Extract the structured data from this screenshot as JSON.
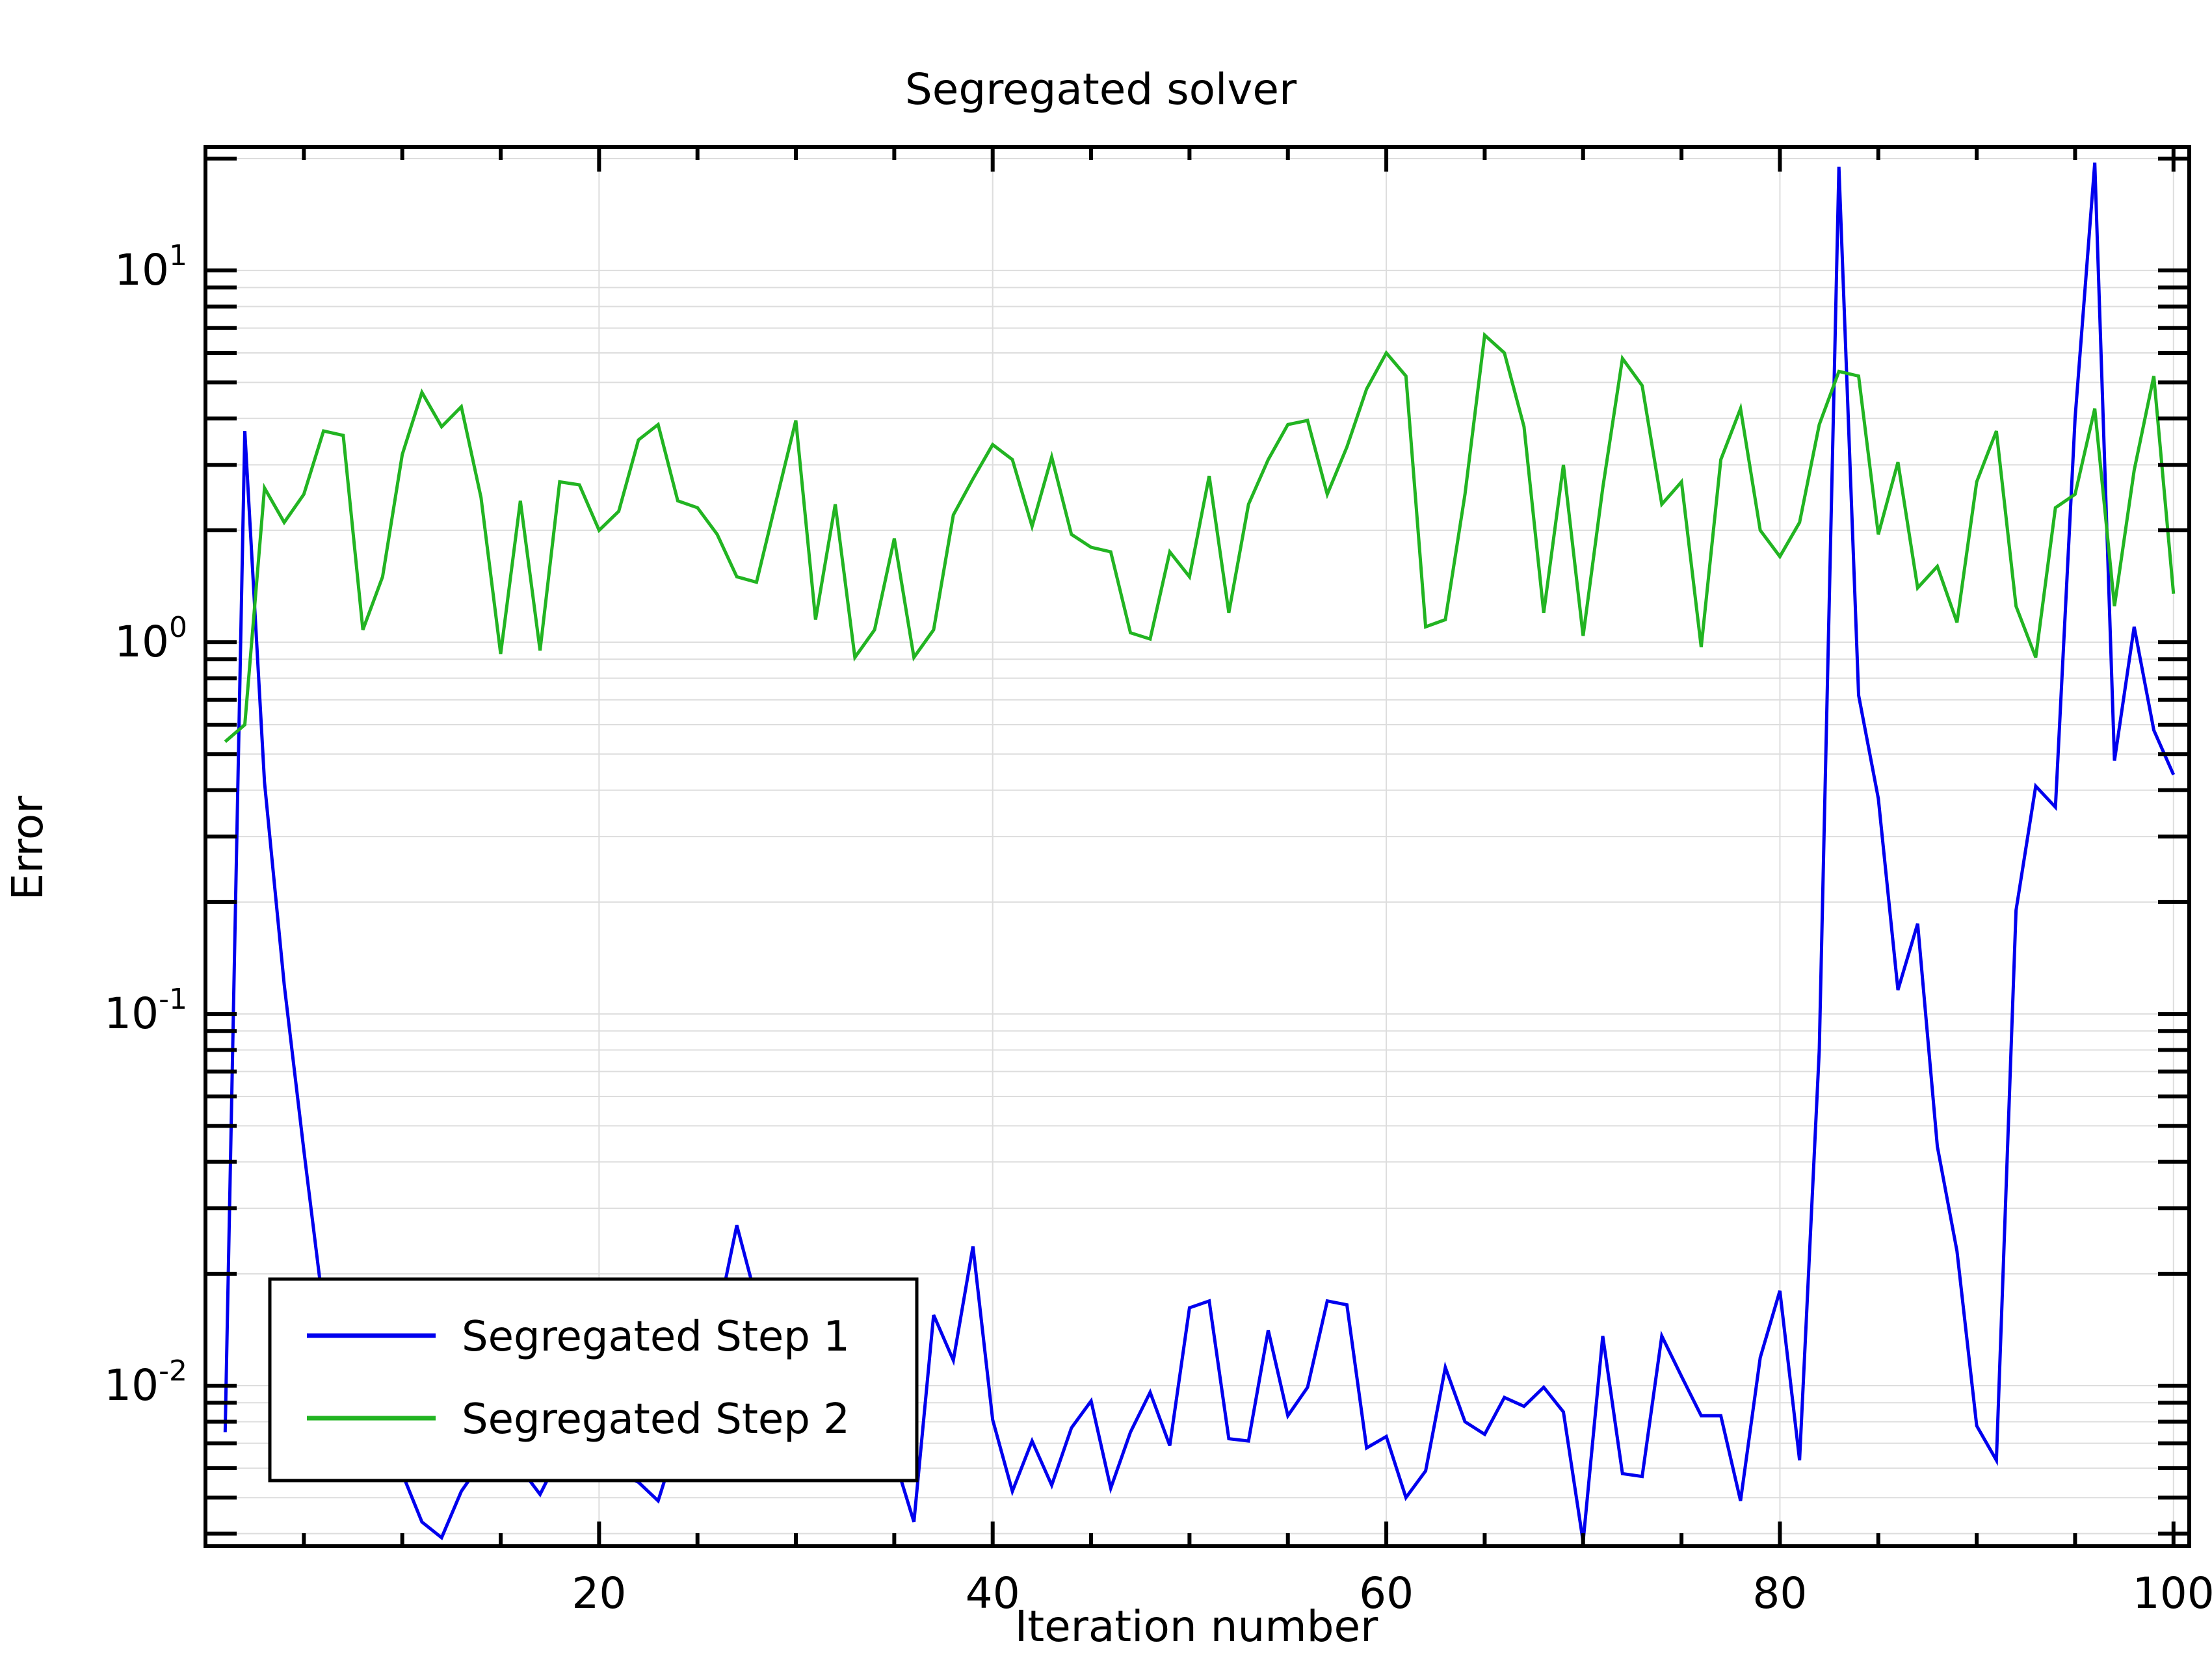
{
  "chart_data": {
    "type": "line",
    "title": "Segregated solver",
    "xlabel": "Iteration number",
    "ylabel": "Error",
    "xlim": [
      0,
      100.8
    ],
    "ylim": [
      0.0037,
      21.5
    ],
    "yscale": "log",
    "grid": true,
    "legend_position": "bottom-left",
    "x_ticks": [
      20,
      40,
      60,
      80,
      100
    ],
    "x_tick_labels": [
      "20",
      "40",
      "60",
      "80",
      "100"
    ],
    "y_ticks": [
      0.01,
      0.1,
      1,
      10
    ],
    "y_tick_labels": [
      {
        "base": "10",
        "exp": "-2"
      },
      {
        "base": "10",
        "exp": "-1"
      },
      {
        "base": "10",
        "exp": "0"
      },
      {
        "base": "10",
        "exp": "1"
      }
    ],
    "series": [
      {
        "name": "Segregated Step 1",
        "color": "#0000ee",
        "x": [
          1,
          2,
          3,
          4,
          5,
          6,
          7,
          8,
          9,
          10,
          11,
          12,
          13,
          14,
          15,
          16,
          17,
          18,
          19,
          20,
          21,
          22,
          23,
          24,
          25,
          26,
          27,
          28,
          29,
          30,
          31,
          32,
          33,
          34,
          35,
          36,
          37,
          38,
          39,
          40,
          41,
          42,
          43,
          44,
          45,
          46,
          47,
          48,
          49,
          50,
          51,
          52,
          53,
          54,
          55,
          56,
          57,
          58,
          59,
          60,
          61,
          62,
          63,
          64,
          65,
          66,
          67,
          68,
          69,
          70,
          71,
          72,
          73,
          74,
          75,
          76,
          77,
          78,
          79,
          80,
          81,
          82,
          83,
          84,
          85,
          86,
          87,
          88,
          89,
          90,
          91,
          92,
          93,
          94,
          95,
          96,
          97,
          98,
          99,
          100
        ],
        "values": [
          0.0075,
          3.7,
          0.42,
          0.12,
          0.043,
          0.016,
          0.0085,
          0.007,
          0.0065,
          0.0058,
          0.0043,
          0.0039,
          0.0052,
          0.0062,
          0.0071,
          0.006,
          0.0051,
          0.0065,
          0.0072,
          0.0063,
          0.0058,
          0.0055,
          0.0049,
          0.0072,
          0.0095,
          0.015,
          0.027,
          0.017,
          0.012,
          0.0095,
          0.008,
          0.007,
          0.0062,
          0.0058,
          0.0064,
          0.0043,
          0.0155,
          0.0117,
          0.0237,
          0.0081,
          0.0052,
          0.0071,
          0.0054,
          0.0077,
          0.0091,
          0.0053,
          0.0075,
          0.0096,
          0.0069,
          0.0162,
          0.0169,
          0.0072,
          0.0071,
          0.0141,
          0.0083,
          0.0099,
          0.0169,
          0.0165,
          0.0068,
          0.0073,
          0.005,
          0.0059,
          0.0112,
          0.008,
          0.0074,
          0.0093,
          0.0088,
          0.0099,
          0.0085,
          0.0038,
          0.0136,
          0.0058,
          0.0057,
          0.0136,
          0.0106,
          0.0083,
          0.0083,
          0.0049,
          0.0119,
          0.018,
          0.0063,
          0.08,
          19.0,
          0.72,
          0.38,
          0.116,
          0.175,
          0.044,
          0.023,
          0.0078,
          0.0063,
          0.19,
          0.41,
          0.36,
          4.0,
          19.5,
          0.48,
          1.1,
          0.58,
          0.44
        ]
      },
      {
        "name": "Segregated Step 2",
        "color": "#22b422",
        "x": [
          1,
          2,
          3,
          4,
          5,
          6,
          7,
          8,
          9,
          10,
          11,
          12,
          13,
          14,
          15,
          16,
          17,
          18,
          19,
          20,
          21,
          22,
          23,
          24,
          25,
          26,
          27,
          28,
          29,
          30,
          31,
          32,
          33,
          34,
          35,
          36,
          37,
          38,
          39,
          40,
          41,
          42,
          43,
          44,
          45,
          46,
          47,
          48,
          49,
          50,
          51,
          52,
          53,
          54,
          55,
          56,
          57,
          58,
          59,
          60,
          61,
          62,
          63,
          64,
          65,
          66,
          67,
          68,
          69,
          70,
          71,
          72,
          73,
          74,
          75,
          76,
          77,
          78,
          79,
          80,
          81,
          82,
          83,
          84,
          85,
          86,
          87,
          88,
          89,
          90,
          91,
          92,
          93,
          94,
          95,
          96,
          97,
          98,
          99,
          100
        ],
        "values": [
          0.54,
          0.6,
          2.6,
          2.1,
          2.5,
          3.7,
          3.6,
          1.08,
          1.5,
          3.2,
          4.7,
          3.8,
          4.3,
          2.45,
          0.93,
          2.4,
          0.95,
          2.7,
          2.65,
          2.0,
          2.25,
          3.5,
          3.85,
          2.4,
          2.3,
          1.95,
          1.5,
          1.45,
          2.4,
          3.95,
          1.15,
          2.35,
          0.91,
          1.08,
          1.9,
          0.91,
          1.08,
          2.2,
          2.75,
          3.4,
          3.1,
          2.05,
          3.15,
          1.95,
          1.8,
          1.75,
          1.06,
          1.02,
          1.75,
          1.5,
          2.8,
          1.2,
          2.35,
          3.1,
          3.85,
          3.95,
          2.5,
          3.35,
          4.8,
          6.0,
          5.2,
          1.1,
          1.15,
          2.5,
          6.7,
          6.0,
          3.8,
          1.2,
          3.0,
          1.04,
          2.6,
          5.8,
          4.9,
          2.35,
          2.7,
          0.97,
          3.1,
          4.25,
          2.0,
          1.7,
          2.1,
          3.85,
          5.35,
          5.2,
          1.95,
          3.05,
          1.4,
          1.6,
          1.13,
          2.7,
          3.7,
          1.25,
          0.91,
          2.3,
          2.5,
          4.25,
          1.25,
          2.9,
          5.2,
          1.35
        ]
      }
    ]
  }
}
